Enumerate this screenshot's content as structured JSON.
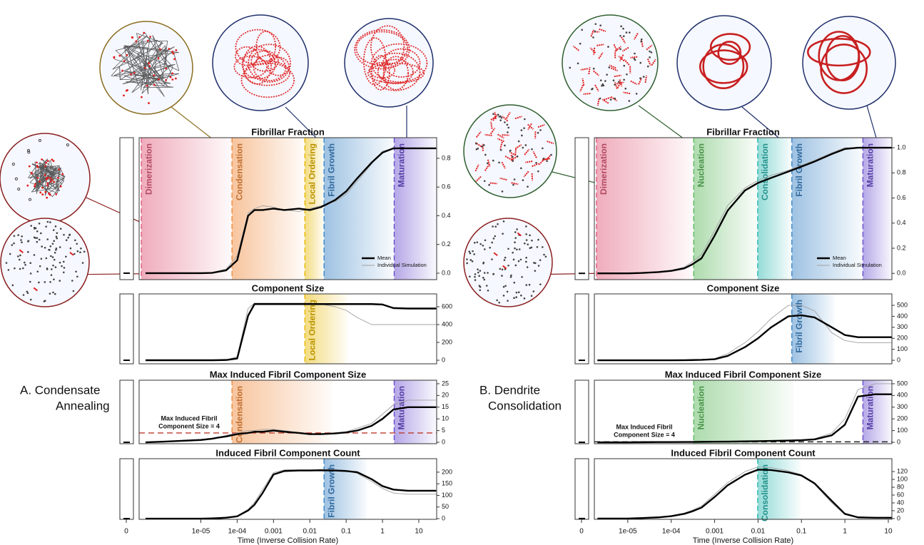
{
  "section_labels": [
    [
      "A. Condensate",
      "Annealing"
    ],
    [
      "B. Dendrite",
      "Consolidation"
    ]
  ],
  "chart_data": [
    {
      "type": "line",
      "title": "Fibrillar Fraction",
      "log_x": true,
      "legend": "bottom-right",
      "x": [
        3e-07,
        1e-06,
        1e-05,
        2e-05,
        3e-05,
        5e-05,
        0.0001,
        0.0002,
        0.0003,
        0.0005,
        0.001,
        0.002,
        0.005,
        0.01,
        0.02,
        0.05,
        0.1,
        0.2,
        0.5,
        1,
        2,
        5,
        10,
        30
      ],
      "xlim": [
        2e-07,
        31
      ],
      "ylim": [
        -0.045,
        0.944
      ],
      "yticks": [
        {
          "value": 0,
          "label": "0.0"
        },
        0.2,
        0.4,
        0.6,
        0.8
      ],
      "series": [
        {
          "name": "Mean",
          "color": "#000000",
          "values": [
            0,
            0,
            0,
            0.002,
            0.01,
            0.02,
            0.09,
            0.4,
            0.44,
            0.44,
            0.45,
            0.44,
            0.45,
            0.44,
            0.46,
            0.51,
            0.57,
            0.66,
            0.77,
            0.84,
            0.87,
            0.87,
            0.87,
            0.87
          ]
        },
        {
          "name": "Individual Simulation",
          "color": "#a0a0a0",
          "values": [
            0,
            0,
            0,
            0.003,
            0.015,
            0.03,
            0.12,
            0.42,
            0.45,
            0.47,
            0.46,
            0.44,
            0.43,
            0.45,
            0.47,
            0.5,
            0.55,
            0.64,
            0.76,
            0.85,
            0.87,
            0.87,
            0.87,
            0.87
          ]
        }
      ],
      "phases": [
        {
          "label": "Dimerization",
          "x": 2.3e-07,
          "color": "#e05a7a"
        },
        {
          "label": "Condensation",
          "x": 7.2e-05,
          "color": "#f08a3c"
        },
        {
          "label": "Local Ordering",
          "x": 0.0073,
          "color": "#e8b800"
        },
        {
          "label": "Fibril Growth",
          "x": 0.0246,
          "color": "#3d85c6"
        },
        {
          "label": "Maturation",
          "x": 2.1,
          "color": "#6a4fcf"
        }
      ]
    },
    {
      "type": "line",
      "title": "Component Size",
      "log_x": true,
      "x": [
        3e-07,
        1e-06,
        1e-05,
        2e-05,
        3e-05,
        5e-05,
        0.0001,
        0.0002,
        0.0003,
        0.0005,
        0.001,
        0.002,
        0.005,
        0.01,
        0.02,
        0.05,
        0.1,
        0.2,
        0.5,
        1,
        2,
        5,
        10,
        30
      ],
      "xlim": [
        2e-07,
        31
      ],
      "ylim": [
        -40,
        744
      ],
      "yticks": [
        0,
        200,
        400,
        600
      ],
      "series": [
        {
          "color": "#000000",
          "values": [
            0,
            0,
            0,
            0,
            1,
            3,
            20,
            500,
            630,
            630,
            630,
            630,
            630,
            630,
            630,
            630,
            630,
            630,
            630,
            625,
            585,
            580,
            580,
            580
          ]
        },
        {
          "color": "#a0a0a0",
          "values": [
            0,
            0,
            0,
            0,
            2,
            5,
            40,
            580,
            640,
            640,
            640,
            640,
            640,
            640,
            630,
            600,
            560,
            480,
            400,
            400,
            400,
            400,
            400,
            400
          ]
        }
      ],
      "phases": [
        {
          "label": "Local Ordering",
          "x": 0.0073,
          "color": "#e8b800"
        }
      ]
    },
    {
      "type": "line",
      "title": "Max Induced Fibril Component Size",
      "log_x": true,
      "x": [
        3e-07,
        1e-06,
        1e-05,
        2e-05,
        3e-05,
        5e-05,
        0.0001,
        0.0002,
        0.0003,
        0.0005,
        0.001,
        0.002,
        0.005,
        0.01,
        0.02,
        0.05,
        0.1,
        0.2,
        0.5,
        1,
        2,
        5,
        10,
        30
      ],
      "xlim": [
        2e-07,
        31
      ],
      "ylim": [
        -0.6,
        26.5
      ],
      "yticks": [
        0,
        5,
        10,
        15,
        20,
        25
      ],
      "threshold": {
        "value": 4,
        "label": [
          "Max Induced Fibril",
          "Component Size = 4"
        ],
        "color": "#c0392b"
      },
      "series": [
        {
          "color": "#000000",
          "values": [
            0,
            0.3,
            1,
            1.5,
            2,
            2.5,
            3.5,
            4,
            4.5,
            4.5,
            5,
            4.5,
            4,
            3.5,
            3.5,
            3.8,
            4.2,
            5,
            7,
            10,
            14,
            15,
            15,
            15
          ]
        },
        {
          "color": "#a0a0a0",
          "values": [
            0,
            0.3,
            1,
            1.5,
            2,
            3,
            4,
            5,
            5,
            5.5,
            5.5,
            5,
            4,
            3.5,
            3.5,
            4,
            4.5,
            6,
            8,
            12,
            16,
            18,
            18,
            18
          ]
        }
      ],
      "phases": [
        {
          "label": "Condensation",
          "x": 7.2e-05,
          "color": "#f08a3c"
        },
        {
          "label": "Maturation",
          "x": 2.1,
          "color": "#6a4fcf"
        }
      ]
    },
    {
      "type": "line",
      "title": "Induced Fibril Component Count",
      "log_x": true,
      "x": [
        3e-07,
        1e-06,
        1e-05,
        2e-05,
        3e-05,
        5e-05,
        0.0001,
        0.0002,
        0.0003,
        0.0005,
        0.001,
        0.002,
        0.005,
        0.01,
        0.02,
        0.05,
        0.1,
        0.2,
        0.5,
        1,
        2,
        5,
        10,
        30
      ],
      "xlim": [
        2e-07,
        31
      ],
      "ylim": [
        -3,
        258
      ],
      "yticks": [
        0,
        50,
        100,
        150,
        200
      ],
      "xticks": [
        {
          "value": 1e-05,
          "label": "1e-05"
        },
        {
          "value": 0.0001,
          "label": "1e-04"
        },
        0.001,
        0.01,
        0.1,
        1,
        10
      ],
      "zero_xticks": [
        0
      ],
      "xlabel": "Time (Inverse Collision Rate)",
      "series": [
        {
          "color": "#000000",
          "values": [
            0,
            0,
            0,
            1,
            2,
            4,
            10,
            35,
            60,
            110,
            190,
            205,
            207,
            207,
            208,
            207,
            205,
            200,
            170,
            140,
            125,
            120,
            120,
            120
          ]
        },
        {
          "color": "#a0a0a0",
          "values": [
            0,
            0,
            0,
            1,
            3,
            5,
            12,
            40,
            70,
            125,
            198,
            210,
            210,
            210,
            212,
            210,
            206,
            195,
            160,
            130,
            110,
            105,
            105,
            105
          ]
        }
      ],
      "phases": [
        {
          "label": "Fibril Growth",
          "x": 0.0246,
          "color": "#3d85c6"
        }
      ]
    },
    {
      "type": "line",
      "title": "Fibrillar Fraction",
      "log_x": true,
      "legend": "bottom-right",
      "x": [
        2e-06,
        1e-05,
        2e-05,
        5e-05,
        0.0001,
        0.0002,
        0.0003,
        0.0005,
        0.001,
        0.002,
        0.005,
        0.01,
        0.02,
        0.05,
        0.1,
        0.2,
        0.5,
        1,
        2,
        5,
        12
      ],
      "xlim": [
        1.7e-06,
        12.1
      ],
      "ylim": [
        -0.05,
        1.08
      ],
      "yticks": [
        {
          "value": 0,
          "label": "0.0"
        },
        0.2,
        0.4,
        0.6,
        0.8,
        {
          "value": 1,
          "label": "1.0"
        }
      ],
      "series": [
        {
          "name": "Mean",
          "color": "#000000",
          "values": [
            0,
            0,
            0.003,
            0.01,
            0.02,
            0.04,
            0.07,
            0.12,
            0.3,
            0.5,
            0.66,
            0.72,
            0.76,
            0.81,
            0.85,
            0.89,
            0.95,
            0.99,
            1,
            1,
            1
          ]
        },
        {
          "name": "Individual Simulation",
          "color": "#a0a0a0",
          "values": [
            0,
            0,
            0.004,
            0.012,
            0.025,
            0.05,
            0.09,
            0.15,
            0.34,
            0.54,
            0.68,
            0.74,
            0.78,
            0.82,
            0.86,
            0.9,
            0.96,
            1,
            1,
            1,
            1
          ]
        }
      ],
      "phases": [
        {
          "label": "Dimerization",
          "x": 1.9e-06,
          "color": "#e05a7a"
        },
        {
          "label": "Nucleation",
          "x": 0.00033,
          "color": "#5cb85c"
        },
        {
          "label": "Consolidation",
          "x": 0.0098,
          "color": "#2ab7b0"
        },
        {
          "label": "Fibril Growth",
          "x": 0.06,
          "color": "#3d85c6"
        },
        {
          "label": "Maturation",
          "x": 2.6,
          "color": "#6a4fcf"
        }
      ]
    },
    {
      "type": "line",
      "title": "Component Size",
      "log_x": true,
      "x": [
        2e-06,
        1e-05,
        2e-05,
        5e-05,
        0.0001,
        0.0002,
        0.0003,
        0.0005,
        0.001,
        0.002,
        0.005,
        0.01,
        0.02,
        0.05,
        0.1,
        0.2,
        0.5,
        1,
        2,
        5,
        12
      ],
      "xlim": [
        1.7e-06,
        12.1
      ],
      "ylim": [
        -32,
        604
      ],
      "yticks": [
        0,
        100,
        200,
        300,
        400,
        500
      ],
      "series": [
        {
          "color": "#000000",
          "values": [
            0,
            0,
            0,
            0,
            0,
            1,
            2,
            4,
            10,
            40,
            120,
            200,
            300,
            400,
            410,
            390,
            300,
            230,
            210,
            210,
            210
          ]
        },
        {
          "color": "#a0a0a0",
          "values": [
            0,
            0,
            0,
            0,
            0,
            1,
            3,
            6,
            15,
            60,
            160,
            260,
            380,
            500,
            500,
            450,
            250,
            180,
            160,
            160,
            160
          ]
        }
      ],
      "phases": [
        {
          "label": "Fibril Growth",
          "x": 0.06,
          "color": "#3d85c6"
        }
      ]
    },
    {
      "type": "line",
      "title": "Max Induced Fibril Component Size",
      "log_x": true,
      "x": [
        2e-06,
        1e-05,
        2e-05,
        5e-05,
        0.0001,
        0.0002,
        0.0003,
        0.0005,
        0.001,
        0.002,
        0.005,
        0.01,
        0.02,
        0.05,
        0.1,
        0.2,
        0.5,
        1,
        2,
        5,
        12
      ],
      "xlim": [
        1.7e-06,
        12.1
      ],
      "ylim": [
        -12,
        530
      ],
      "yticks": [
        0,
        100,
        200,
        300,
        400,
        500
      ],
      "threshold": {
        "value": 4,
        "label": [
          "Max Induced Fibril",
          "Component Size = 4"
        ],
        "color": "#222222"
      },
      "series": [
        {
          "color": "#000000",
          "values": [
            0,
            0,
            1,
            2,
            2,
            3,
            3,
            4,
            5,
            6,
            8,
            10,
            12,
            15,
            18,
            25,
            60,
            150,
            390,
            410,
            410
          ]
        },
        {
          "color": "#a0a0a0",
          "values": [
            0,
            0,
            1,
            2,
            2,
            3,
            3,
            4,
            5,
            6,
            8,
            10,
            12,
            15,
            20,
            30,
            80,
            200,
            450,
            500,
            500
          ]
        }
      ],
      "phases": [
        {
          "label": "Nucleation",
          "x": 0.00033,
          "color": "#5cb85c"
        },
        {
          "label": "Maturation",
          "x": 2.6,
          "color": "#6a4fcf"
        }
      ]
    },
    {
      "type": "line",
      "title": "Induced Fibril Component Count",
      "log_x": true,
      "x": [
        2e-06,
        1e-05,
        2e-05,
        5e-05,
        0.0001,
        0.0002,
        0.0003,
        0.0005,
        0.001,
        0.002,
        0.005,
        0.01,
        0.02,
        0.05,
        0.1,
        0.2,
        0.5,
        1,
        2,
        5,
        12
      ],
      "xlim": [
        1.7e-06,
        12.1
      ],
      "ylim": [
        -2,
        153
      ],
      "yticks": [
        0,
        20,
        40,
        60,
        80,
        100,
        120
      ],
      "xticks": [
        {
          "value": 1e-05,
          "label": "1e-05"
        },
        {
          "value": 0.0001,
          "label": "1e-04"
        },
        0.001,
        0.01,
        0.1,
        1,
        10
      ],
      "zero_xticks": [
        0
      ],
      "xlabel": "Time (Inverse Collision Rate)",
      "series": [
        {
          "color": "#000000",
          "values": [
            0,
            0,
            1,
            3,
            6,
            12,
            18,
            28,
            55,
            85,
            112,
            125,
            124,
            118,
            110,
            90,
            45,
            12,
            3,
            2,
            2
          ]
        },
        {
          "color": "#a0a0a0",
          "values": [
            0,
            0,
            1,
            3,
            7,
            14,
            21,
            32,
            62,
            92,
            120,
            132,
            130,
            122,
            112,
            88,
            40,
            10,
            3,
            2,
            2
          ]
        }
      ],
      "phases": [
        {
          "label": "Consolidation",
          "x": 0.0098,
          "color": "#2ab7b0"
        }
      ]
    }
  ]
}
